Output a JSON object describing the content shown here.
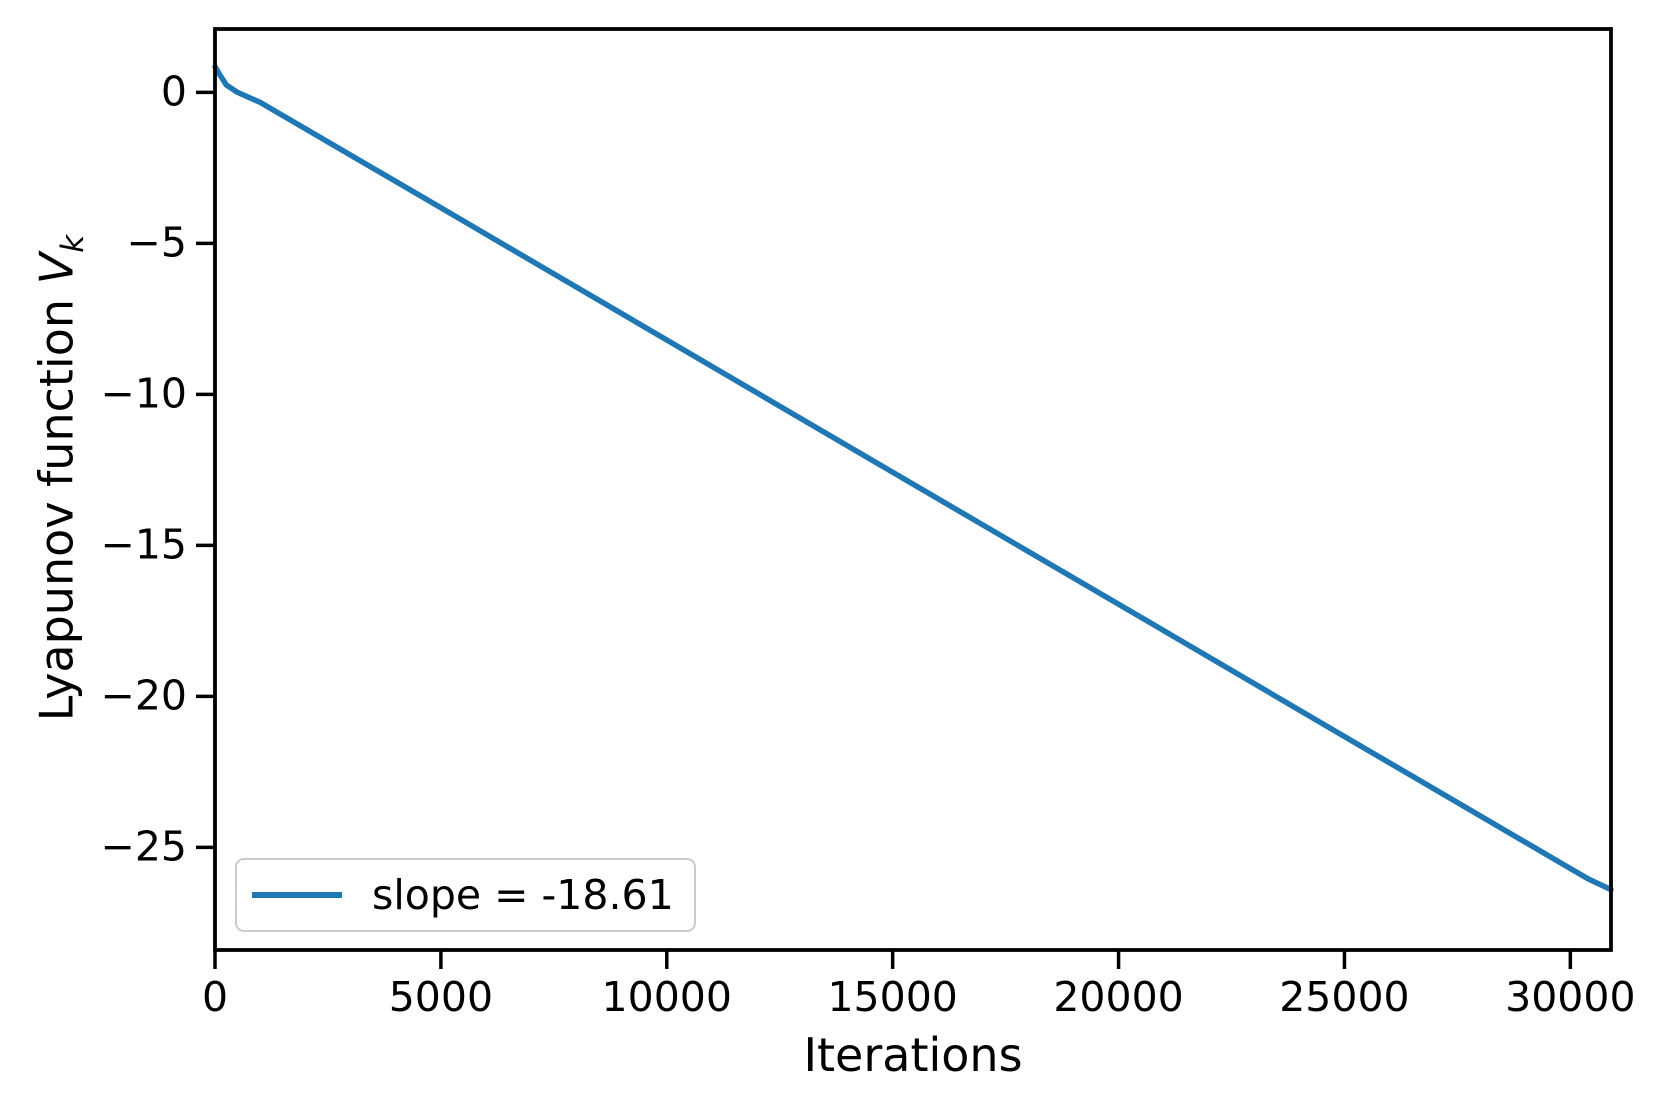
{
  "figure": {
    "background": "#ffffff",
    "text_color": "#000000",
    "spine_color": "#000000"
  },
  "chart_data": {
    "type": "line",
    "title": "",
    "xlabel": "Iterations",
    "ylabel": "Lyapunov function V_k",
    "ylabel_parts": {
      "prefix": "Lyapunov function ",
      "var": "V",
      "sub": "k"
    },
    "xlim": [
      0,
      30900
    ],
    "ylim": [
      -28.4,
      2.1
    ],
    "xticks": [
      0,
      5000,
      10000,
      15000,
      20000,
      25000,
      30000
    ],
    "yticks": [
      0,
      -5,
      -10,
      -15,
      -20,
      -25
    ],
    "grid": false,
    "legend": {
      "position": "lower left",
      "entries": [
        {
          "label": "slope = -18.61",
          "color": "#1f77b4"
        }
      ]
    },
    "series": [
      {
        "name": "slope = -18.61",
        "color": "#1f77b4",
        "linewidth": 5.5,
        "points": [
          [
            0,
            0.85
          ],
          [
            100,
            0.6
          ],
          [
            250,
            0.25
          ],
          [
            500,
            0.0
          ],
          [
            1000,
            -0.33
          ],
          [
            5000,
            -3.82
          ],
          [
            10000,
            -8.2
          ],
          [
            15000,
            -12.58
          ],
          [
            20000,
            -16.95
          ],
          [
            25000,
            -21.33
          ],
          [
            30000,
            -25.7
          ],
          [
            30400,
            -26.05
          ],
          [
            30900,
            -26.4
          ]
        ]
      }
    ]
  }
}
